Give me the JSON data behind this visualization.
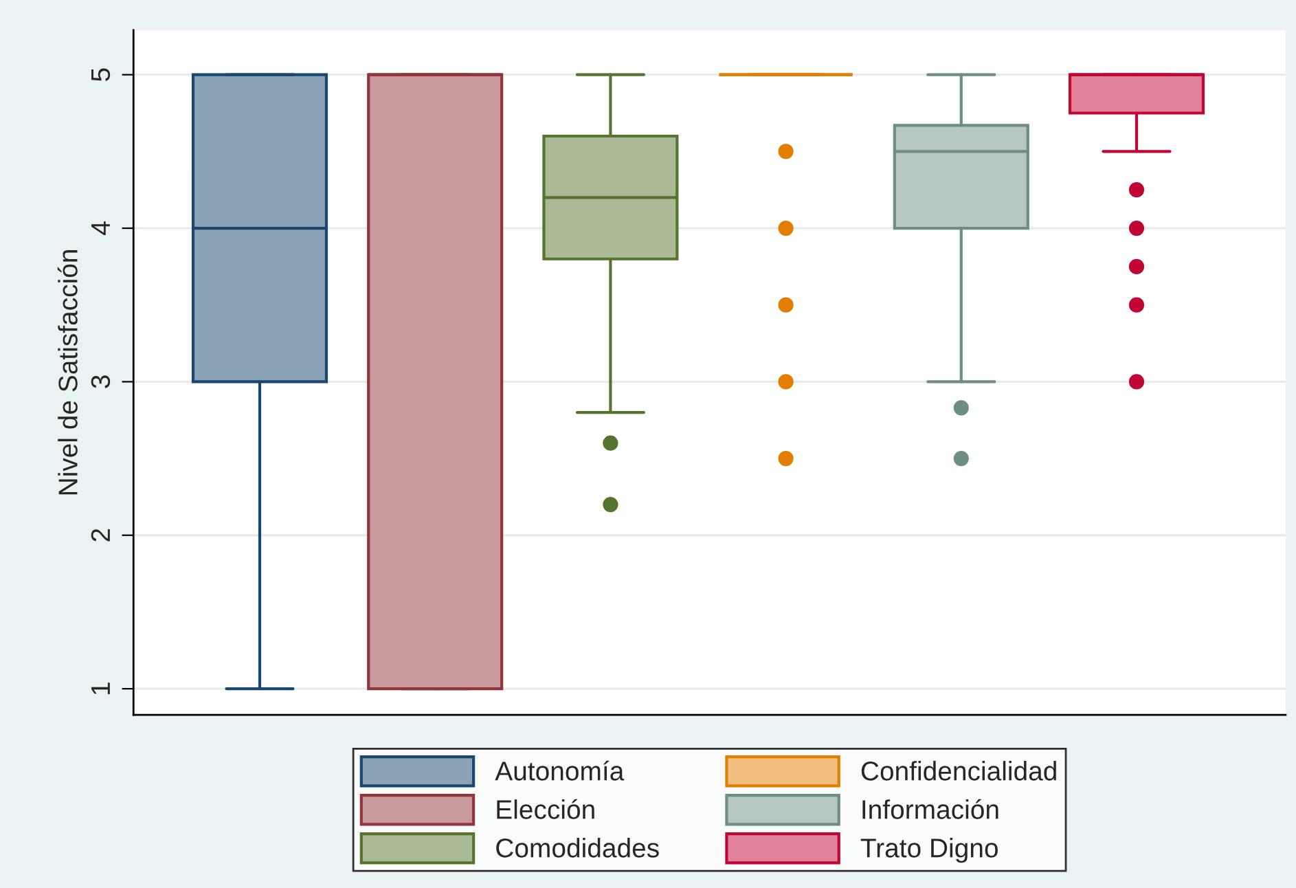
{
  "chart_data": {
    "type": "box",
    "ylabel": "Nivel de Satisfacción",
    "ylim": [
      0.83,
      5.29
    ],
    "yticks": [
      1,
      2,
      3,
      4,
      5
    ],
    "grid": "y",
    "legend": "bottom",
    "tick_labels": "y",
    "series": [
      {
        "name": "Autonomía",
        "color": "#1a476f",
        "boxes": [
          {
            "low": 1,
            "q1": 3,
            "median": 4,
            "q3": 5,
            "high": 5
          }
        ]
      },
      {
        "name": "Elección",
        "color": "#90353b",
        "boxes": [
          {
            "low": 1,
            "q1": 1,
            "median": 5,
            "q3": 5,
            "high": 5
          }
        ]
      },
      {
        "name": "Comodidades",
        "color": "#55752f",
        "boxes": [
          {
            "low": 2.8,
            "q1": 3.8,
            "median": 4.2,
            "q3": 4.6,
            "high": 5,
            "outliers": [
              2.6,
              2.2
            ]
          }
        ]
      },
      {
        "name": "Confidencialidad",
        "color": "#e37e00",
        "boxes": [
          {
            "low": 5,
            "q1": 5,
            "median": 5,
            "q3": 5,
            "high": 5,
            "outliers": [
              4.5,
              4,
              3.5,
              3,
              2.5
            ]
          }
        ]
      },
      {
        "name": "Información",
        "color": "#6e8e84",
        "boxes": [
          {
            "low": 3,
            "q1": 4,
            "median": 4.5,
            "q3": 4.67,
            "high": 5,
            "outliers": [
              2.83,
              2.5
            ]
          }
        ]
      },
      {
        "name": "Trato Digno",
        "color": "#c10534",
        "boxes": [
          {
            "low": 4.5,
            "q1": 4.75,
            "median": 5,
            "q3": 5,
            "high": 5,
            "outliers": [
              4.25,
              4,
              3.75,
              3.5,
              3
            ]
          }
        ]
      }
    ]
  }
}
